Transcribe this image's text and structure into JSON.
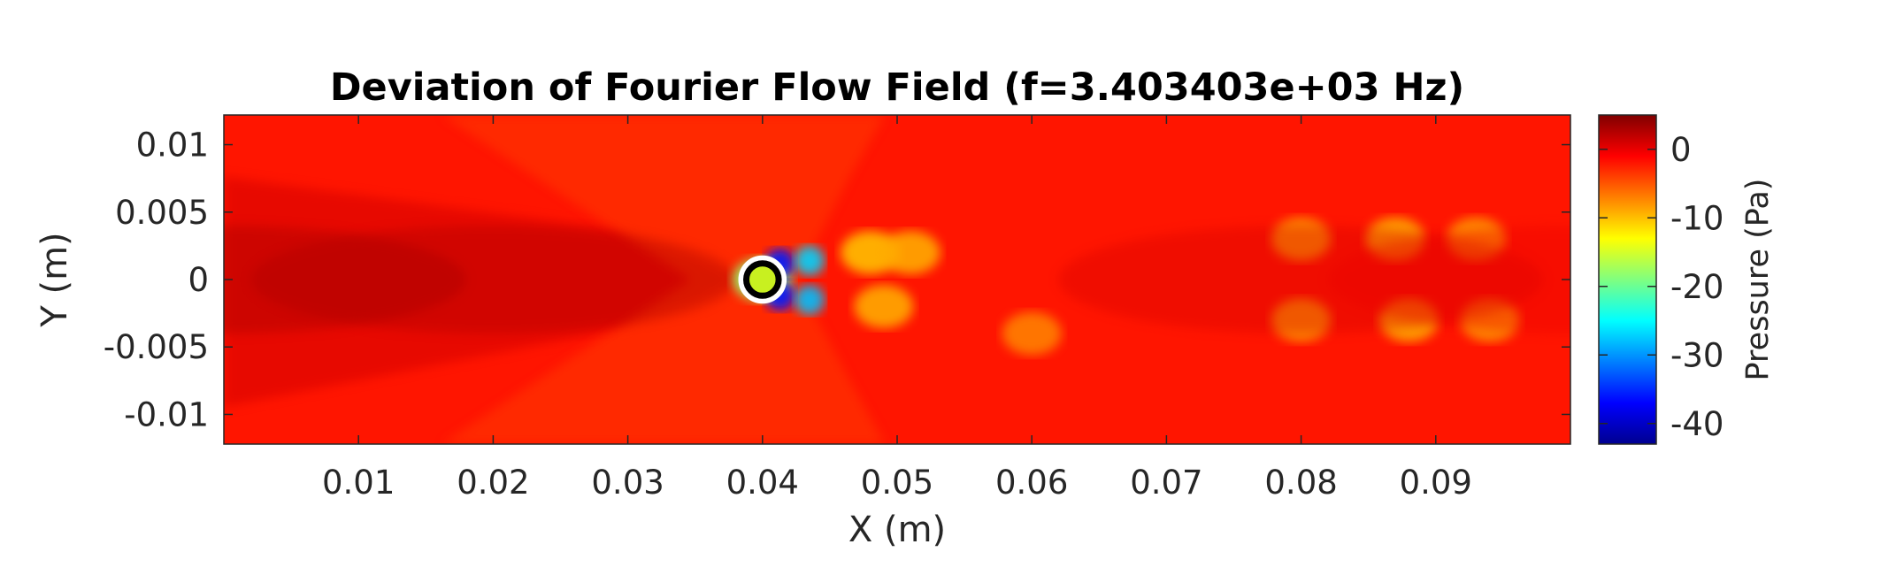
{
  "chart_data": {
    "type": "heatmap",
    "title": "Deviation of Fourier Flow Field (f=3.403403e+03 Hz)",
    "xlabel": "X (m)",
    "ylabel": "Y (m)",
    "xlim": [
      0,
      0.1
    ],
    "ylim": [
      -0.0122,
      0.0122
    ],
    "x_ticks": [
      {
        "value": 0.01,
        "label": "0.01"
      },
      {
        "value": 0.02,
        "label": "0.02"
      },
      {
        "value": 0.03,
        "label": "0.03"
      },
      {
        "value": 0.04,
        "label": "0.04"
      },
      {
        "value": 0.05,
        "label": "0.05"
      },
      {
        "value": 0.06,
        "label": "0.06"
      },
      {
        "value": 0.07,
        "label": "0.07"
      },
      {
        "value": 0.08,
        "label": "0.08"
      },
      {
        "value": 0.09,
        "label": "0.09"
      }
    ],
    "y_ticks": [
      {
        "value": 0.01,
        "label": "0.01"
      },
      {
        "value": 0.005,
        "label": "0.005"
      },
      {
        "value": 0,
        "label": "0"
      },
      {
        "value": -0.005,
        "label": "-0.005"
      },
      {
        "value": -0.01,
        "label": "-0.01"
      }
    ],
    "colorbar": {
      "label": "Pressure (Pa)",
      "colormap": "jet",
      "range": [
        -43,
        5
      ],
      "ticks": [
        {
          "value": 0,
          "label": "0"
        },
        {
          "value": -10,
          "label": "-10"
        },
        {
          "value": -20,
          "label": "-20"
        },
        {
          "value": -30,
          "label": "-30"
        },
        {
          "value": -40,
          "label": "-40"
        }
      ]
    },
    "cylinder": {
      "x": 0.04,
      "y": 0,
      "radius": 0.0012
    },
    "field_features": [
      {
        "x": 0.0,
        "y": 0.0,
        "pressure": 3.5
      },
      {
        "x": 0.02,
        "y": 0.0,
        "pressure": 3.0
      },
      {
        "x": 0.04,
        "y": 0.0,
        "pressure": -18
      },
      {
        "x": 0.0413,
        "y": 0.0012,
        "pressure": -36
      },
      {
        "x": 0.0413,
        "y": -0.0012,
        "pressure": -36
      },
      {
        "x": 0.0435,
        "y": 0.0014,
        "pressure": -27
      },
      {
        "x": 0.0435,
        "y": -0.0015,
        "pressure": -28
      },
      {
        "x": 0.048,
        "y": 0.002,
        "pressure": -10
      },
      {
        "x": 0.051,
        "y": 0.002,
        "pressure": -9
      },
      {
        "x": 0.049,
        "y": -0.002,
        "pressure": -9
      },
      {
        "x": 0.06,
        "y": -0.004,
        "pressure": -7
      },
      {
        "x": 0.08,
        "y": 0.003,
        "pressure": -8
      },
      {
        "x": 0.087,
        "y": 0.003,
        "pressure": -9
      },
      {
        "x": 0.093,
        "y": 0.003,
        "pressure": -8
      },
      {
        "x": 0.08,
        "y": -0.003,
        "pressure": -8
      },
      {
        "x": 0.088,
        "y": -0.003,
        "pressure": -9
      },
      {
        "x": 0.094,
        "y": -0.003,
        "pressure": -8
      },
      {
        "x": 0.08,
        "y": 0.0,
        "pressure": 1.0
      },
      {
        "x": 0.1,
        "y": 0.0,
        "pressure": 0.0
      }
    ],
    "grid": false,
    "legend": "none"
  },
  "colors": {
    "background_field": "#ff1500",
    "axis_text": "#262626"
  }
}
